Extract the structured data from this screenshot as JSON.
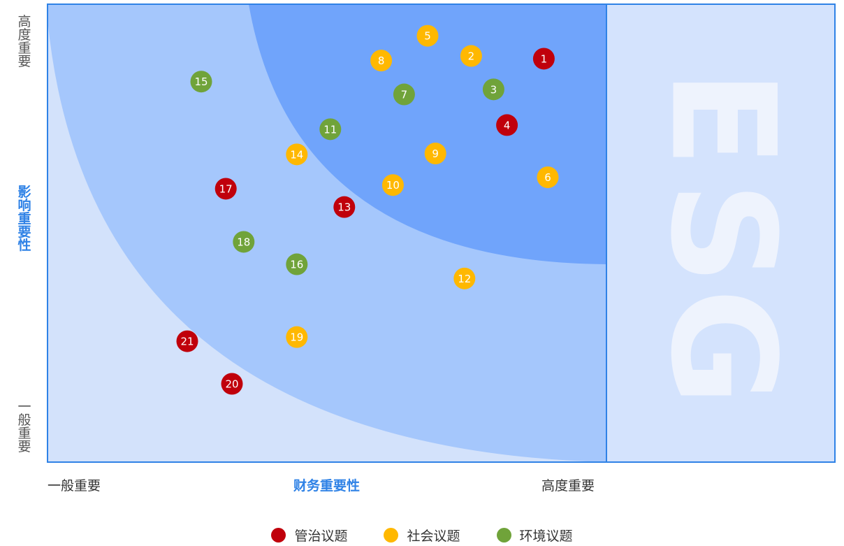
{
  "y_axis": {
    "title": "影响重要性",
    "top_label": "高度重要",
    "bottom_label": "一般重要"
  },
  "x_axis": {
    "title": "财务重要性",
    "left_label": "一般重要",
    "right_label": "高度重要"
  },
  "watermark": "ESG",
  "legend": [
    {
      "label": "管治议题",
      "color": "#c0000b"
    },
    {
      "label": "社会议题",
      "color": "#ffb800"
    },
    {
      "label": "环境议题",
      "color": "#70a33a"
    }
  ],
  "chart_data": {
    "type": "scatter",
    "xlabel": "财务重要性",
    "ylabel": "影响重要性",
    "xlim": [
      0,
      100
    ],
    "ylim": [
      0,
      100
    ],
    "categories": [
      "管治议题",
      "社会议题",
      "环境议题"
    ],
    "points": [
      {
        "id": "1",
        "category": "管治议题",
        "x": 88.8,
        "y": 88.1
      },
      {
        "id": "2",
        "category": "社会议题",
        "x": 75.8,
        "y": 88.7
      },
      {
        "id": "3",
        "category": "环境议题",
        "x": 79.8,
        "y": 81.4
      },
      {
        "id": "4",
        "category": "管治议题",
        "x": 82.2,
        "y": 73.6
      },
      {
        "id": "5",
        "category": "社会议题",
        "x": 68.0,
        "y": 93.1
      },
      {
        "id": "6",
        "category": "社会议题",
        "x": 89.5,
        "y": 62.2
      },
      {
        "id": "7",
        "category": "环境议题",
        "x": 63.8,
        "y": 80.3
      },
      {
        "id": "8",
        "category": "社会议题",
        "x": 59.7,
        "y": 87.7
      },
      {
        "id": "9",
        "category": "社会议题",
        "x": 69.4,
        "y": 67.4
      },
      {
        "id": "10",
        "category": "社会议题",
        "x": 61.8,
        "y": 60.5
      },
      {
        "id": "11",
        "category": "环境议题",
        "x": 50.6,
        "y": 72.7
      },
      {
        "id": "12",
        "category": "社会议题",
        "x": 74.6,
        "y": 40.1
      },
      {
        "id": "13",
        "category": "管治议题",
        "x": 53.1,
        "y": 55.7
      },
      {
        "id": "14",
        "category": "社会议题",
        "x": 44.6,
        "y": 67.2
      },
      {
        "id": "15",
        "category": "环境议题",
        "x": 27.5,
        "y": 83.1
      },
      {
        "id": "16",
        "category": "环境议题",
        "x": 44.6,
        "y": 43.2
      },
      {
        "id": "17",
        "category": "管治议题",
        "x": 31.9,
        "y": 59.7
      },
      {
        "id": "18",
        "category": "环境议题",
        "x": 35.1,
        "y": 48.1
      },
      {
        "id": "19",
        "category": "社会议题",
        "x": 44.6,
        "y": 27.3
      },
      {
        "id": "20",
        "category": "管治议题",
        "x": 33.0,
        "y": 17.1
      },
      {
        "id": "21",
        "category": "管治议题",
        "x": 25.0,
        "y": 26.4
      }
    ]
  }
}
